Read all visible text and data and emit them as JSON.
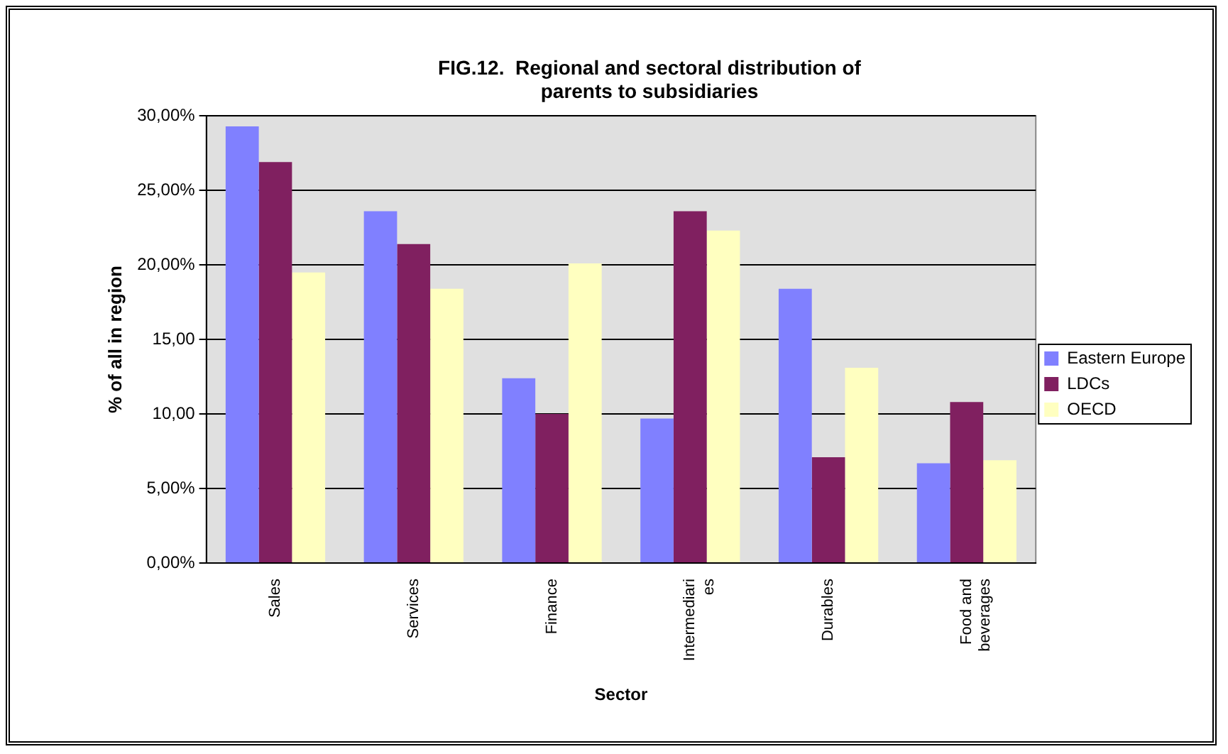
{
  "chart_data": {
    "type": "bar",
    "title": "FIG.12.  Regional and sectoral distribution of parents to subsidiaries",
    "xlabel": "Sector",
    "ylabel": "% of all in region",
    "categories": [
      "Sales",
      "Services",
      "Finance",
      "Intermediaries",
      "Durables",
      "Food and beverages"
    ],
    "series": [
      {
        "name": "Eastern Europe",
        "color": "#8080ff",
        "values": [
          29.3,
          23.6,
          12.4,
          9.7,
          18.4,
          6.7
        ]
      },
      {
        "name": "LDCs",
        "color": "#802060",
        "values": [
          26.9,
          21.4,
          10.0,
          23.6,
          7.1,
          10.8
        ]
      },
      {
        "name": "OECD",
        "color": "#ffffc0",
        "values": [
          19.5,
          18.4,
          20.1,
          22.3,
          13.1,
          6.9
        ]
      }
    ],
    "ylim": [
      0,
      30
    ],
    "yticks": [
      {
        "value": 0,
        "label": "0,00%"
      },
      {
        "value": 5,
        "label": "5,00%"
      },
      {
        "value": 10,
        "label": "10,00"
      },
      {
        "value": 15,
        "label": "15,00"
      },
      {
        "value": 20,
        "label": "20,00%"
      },
      {
        "value": 25,
        "label": "25,00%"
      },
      {
        "value": 30,
        "label": "30,00%"
      }
    ],
    "grid": "y",
    "legend": "right"
  }
}
